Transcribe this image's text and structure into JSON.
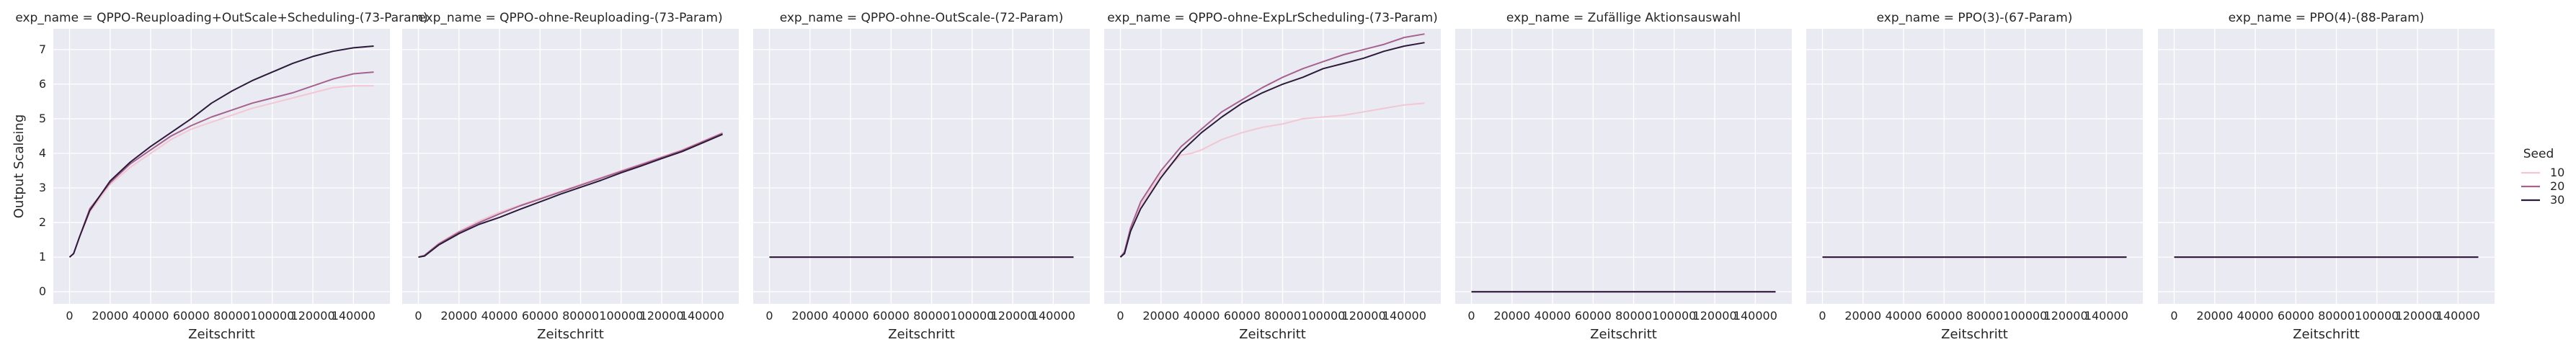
{
  "chart_data": {
    "type": "line",
    "facet_key": "exp_name",
    "shared_ylabel": "Output Scaleing",
    "xlabel": "Zeitschritt",
    "ylim": [
      -0.35,
      7.6
    ],
    "xlim": [
      -8000,
      158000
    ],
    "yticks": [
      0,
      1,
      2,
      3,
      4,
      5,
      6,
      7
    ],
    "xticks": [
      0,
      20000,
      40000,
      60000,
      80000,
      100000,
      120000,
      140000
    ],
    "grid": true,
    "legend": {
      "title": "Seed",
      "placement": "right",
      "entries": [
        "10",
        "20",
        "30"
      ]
    },
    "colors": {
      "panel_bg": "#eaeaf2",
      "grid": "#ffffff",
      "seed_10": "#f2c7d3",
      "seed_20": "#a6628f",
      "seed_30": "#2c1a3a"
    },
    "panels": [
      {
        "title": "exp_name = QPPO-Reuploading+OutScale+Scheduling-(73-Param)",
        "series": [
          {
            "name": "10",
            "x": [
              0,
              2000,
              5000,
              10000,
              20000,
              30000,
              40000,
              50000,
              60000,
              70000,
              80000,
              90000,
              100000,
              110000,
              120000,
              130000,
              140000,
              150000
            ],
            "y": [
              1.0,
              1.1,
              1.6,
              2.3,
              3.1,
              3.6,
              4.0,
              4.4,
              4.7,
              4.9,
              5.1,
              5.3,
              5.45,
              5.6,
              5.75,
              5.9,
              5.95,
              5.95
            ]
          },
          {
            "name": "20",
            "x": [
              0,
              2000,
              5000,
              10000,
              20000,
              30000,
              40000,
              50000,
              60000,
              70000,
              80000,
              90000,
              100000,
              110000,
              120000,
              130000,
              140000,
              150000
            ],
            "y": [
              1.0,
              1.1,
              1.6,
              2.4,
              3.15,
              3.7,
              4.1,
              4.5,
              4.8,
              5.05,
              5.25,
              5.45,
              5.6,
              5.75,
              5.95,
              6.15,
              6.3,
              6.35
            ]
          },
          {
            "name": "30",
            "x": [
              0,
              2000,
              5000,
              10000,
              20000,
              30000,
              40000,
              50000,
              60000,
              70000,
              80000,
              90000,
              100000,
              110000,
              120000,
              130000,
              140000,
              150000
            ],
            "y": [
              1.0,
              1.1,
              1.6,
              2.35,
              3.2,
              3.75,
              4.2,
              4.6,
              5.0,
              5.45,
              5.8,
              6.1,
              6.35,
              6.6,
              6.8,
              6.95,
              7.05,
              7.1
            ]
          }
        ]
      },
      {
        "title": "exp_name = QPPO-ohne-Reuploading-(73-Param)",
        "series": [
          {
            "name": "10",
            "x": [
              0,
              3000,
              10000,
              20000,
              30000,
              40000,
              50000,
              60000,
              70000,
              80000,
              90000,
              100000,
              110000,
              120000,
              130000,
              140000,
              150000
            ],
            "y": [
              1.0,
              1.05,
              1.4,
              1.75,
              2.05,
              2.3,
              2.5,
              2.7,
              2.9,
              3.1,
              3.3,
              3.5,
              3.7,
              3.9,
              4.1,
              4.35,
              4.6
            ]
          },
          {
            "name": "20",
            "x": [
              0,
              3000,
              10000,
              20000,
              30000,
              40000,
              50000,
              60000,
              70000,
              80000,
              90000,
              100000,
              110000,
              120000,
              130000,
              140000,
              150000
            ],
            "y": [
              1.0,
              1.05,
              1.38,
              1.72,
              2.0,
              2.25,
              2.48,
              2.68,
              2.88,
              3.08,
              3.28,
              3.48,
              3.68,
              3.88,
              4.08,
              4.33,
              4.58
            ]
          },
          {
            "name": "30",
            "x": [
              0,
              3000,
              10000,
              20000,
              30000,
              40000,
              50000,
              60000,
              70000,
              80000,
              90000,
              100000,
              110000,
              120000,
              130000,
              140000,
              150000
            ],
            "y": [
              1.0,
              1.03,
              1.35,
              1.68,
              1.95,
              2.15,
              2.38,
              2.6,
              2.82,
              3.02,
              3.22,
              3.44,
              3.64,
              3.85,
              4.05,
              4.3,
              4.55
            ]
          }
        ]
      },
      {
        "title": "exp_name = QPPO-ohne-OutScale-(72-Param)",
        "series": [
          {
            "name": "10",
            "x": [
              0,
              150000
            ],
            "y": [
              1.0,
              1.0
            ]
          },
          {
            "name": "20",
            "x": [
              0,
              150000
            ],
            "y": [
              1.0,
              1.0
            ]
          },
          {
            "name": "30",
            "x": [
              0,
              150000
            ],
            "y": [
              1.0,
              1.0
            ]
          }
        ]
      },
      {
        "title": "exp_name = QPPO-ohne-ExpLrScheduling-(73-Param)",
        "series": [
          {
            "name": "10",
            "x": [
              0,
              2000,
              5000,
              10000,
              20000,
              30000,
              35000,
              40000,
              50000,
              60000,
              70000,
              80000,
              90000,
              100000,
              110000,
              120000,
              130000,
              140000,
              150000
            ],
            "y": [
              1.0,
              1.15,
              1.8,
              2.5,
              3.4,
              3.95,
              4.0,
              4.1,
              4.4,
              4.6,
              4.75,
              4.85,
              5.0,
              5.05,
              5.1,
              5.2,
              5.3,
              5.4,
              5.45
            ]
          },
          {
            "name": "20",
            "x": [
              0,
              2000,
              5000,
              10000,
              20000,
              30000,
              40000,
              50000,
              60000,
              70000,
              80000,
              90000,
              100000,
              110000,
              120000,
              130000,
              140000,
              150000
            ],
            "y": [
              1.0,
              1.15,
              1.85,
              2.6,
              3.5,
              4.2,
              4.7,
              5.2,
              5.55,
              5.9,
              6.2,
              6.45,
              6.65,
              6.85,
              7.0,
              7.15,
              7.35,
              7.45
            ]
          },
          {
            "name": "30",
            "x": [
              0,
              2000,
              5000,
              10000,
              20000,
              30000,
              40000,
              50000,
              60000,
              70000,
              80000,
              90000,
              100000,
              110000,
              120000,
              130000,
              140000,
              150000
            ],
            "y": [
              1.0,
              1.1,
              1.75,
              2.4,
              3.3,
              4.05,
              4.6,
              5.05,
              5.45,
              5.75,
              6.0,
              6.2,
              6.45,
              6.6,
              6.75,
              6.95,
              7.1,
              7.2
            ]
          }
        ]
      },
      {
        "title": "exp_name = Zufällige Aktionsauswahl",
        "series": [
          {
            "name": "10",
            "x": [
              0,
              150000
            ],
            "y": [
              0.0,
              0.0
            ]
          },
          {
            "name": "20",
            "x": [
              0,
              150000
            ],
            "y": [
              0.0,
              0.0
            ]
          },
          {
            "name": "30",
            "x": [
              0,
              150000
            ],
            "y": [
              0.0,
              0.0
            ]
          }
        ]
      },
      {
        "title": "exp_name = PPO(3)-(67-Param)",
        "series": [
          {
            "name": "10",
            "x": [
              0,
              150000
            ],
            "y": [
              1.0,
              1.0
            ]
          },
          {
            "name": "20",
            "x": [
              0,
              150000
            ],
            "y": [
              1.0,
              1.0
            ]
          },
          {
            "name": "30",
            "x": [
              0,
              150000
            ],
            "y": [
              1.0,
              1.0
            ]
          }
        ]
      },
      {
        "title": "exp_name = PPO(4)-(88-Param)",
        "series": [
          {
            "name": "10",
            "x": [
              0,
              150000
            ],
            "y": [
              1.0,
              1.0
            ]
          },
          {
            "name": "20",
            "x": [
              0,
              150000
            ],
            "y": [
              1.0,
              1.0
            ]
          },
          {
            "name": "30",
            "x": [
              0,
              150000
            ],
            "y": [
              1.0,
              1.0
            ]
          }
        ]
      }
    ]
  }
}
